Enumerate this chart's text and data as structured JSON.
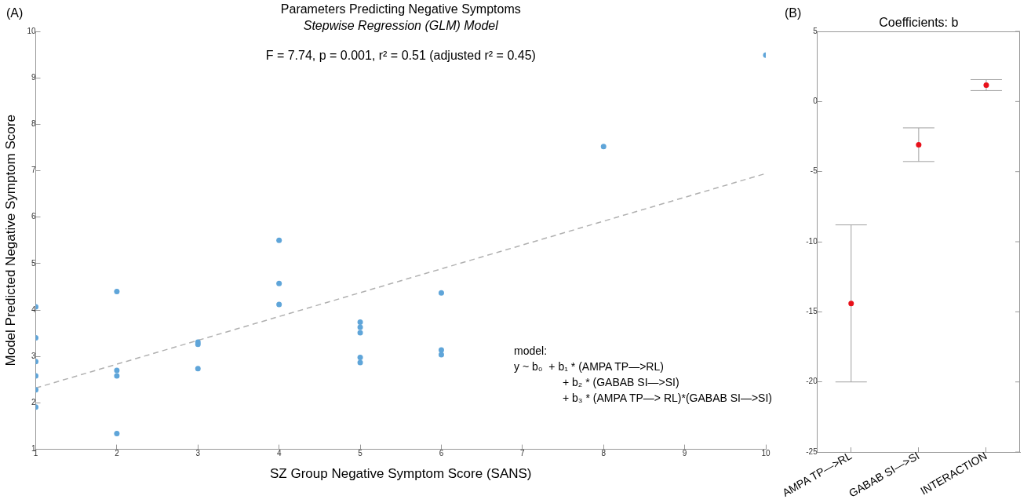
{
  "chart_data": [
    {
      "type": "scatter",
      "title": "Parameters Predicting Negative Symptoms",
      "subtitle": "Stepwise Regression (GLM) Model",
      "xlabel": "SZ Group Negative Symptom Score (SANS)",
      "ylabel": "Model Predicted Negative Symptom Score",
      "xlim": [
        1,
        10
      ],
      "ylim": [
        1,
        10
      ],
      "xticks": [
        1,
        2,
        3,
        4,
        5,
        6,
        7,
        8,
        9,
        10
      ],
      "yticks": [
        1,
        2,
        3,
        4,
        5,
        6,
        7,
        8,
        9,
        10
      ],
      "grid": false,
      "legend": false,
      "marker": "circle",
      "annotations": [
        "(A)",
        "F = 7.74, p = 0.001, r² = 0.51 (adjusted r² = 0.45)",
        "model:",
        "y ~ b₀  + b₁ * (AMPA TP—>RL)",
        "+ b₂ * (GABAB SI—>SI)",
        "+ b₃ * (AMPA TP—> RL)*(GABAB SI—>SI)"
      ],
      "series": [
        {
          "type": "scatter",
          "color": "#5fa5d9",
          "x": [
            1,
            1,
            1,
            1,
            1,
            1,
            2,
            2,
            2,
            2,
            3,
            3,
            3,
            4,
            4,
            4,
            5,
            5,
            5,
            5,
            5,
            6,
            6,
            6,
            8,
            10
          ],
          "values": [
            4.07,
            3.4,
            2.89,
            2.58,
            2.28,
            1.91,
            4.4,
            2.7,
            2.58,
            1.34,
            3.31,
            3.26,
            2.74,
            5.5,
            4.57,
            4.12,
            3.74,
            3.63,
            3.51,
            2.98,
            2.87,
            4.37,
            3.14,
            3.04,
            7.52,
            9.49
          ]
        },
        {
          "type": "line",
          "color": "#b0b0b0",
          "line_style": "dashed",
          "marker": "none",
          "x": [
            1,
            10
          ],
          "values": [
            2.32,
            6.94
          ]
        }
      ]
    },
    {
      "type": "scatter",
      "title": "Coefficients: b",
      "categories": [
        "AMPA TP—>RL",
        "GABAB SI—>SI",
        "INTERACTION"
      ],
      "ylim": [
        -25,
        5
      ],
      "yticks": [
        -25,
        -20,
        -15,
        -10,
        -5,
        0,
        5
      ],
      "grid": false,
      "legend": false,
      "marker": "circle",
      "annotations": [
        "(B)"
      ],
      "series": [
        {
          "color": "#e8101a",
          "values": [
            -14.4,
            -3.08,
            1.17
          ],
          "errors": [
            5.6,
            1.2,
            0.39
          ]
        }
      ]
    }
  ]
}
